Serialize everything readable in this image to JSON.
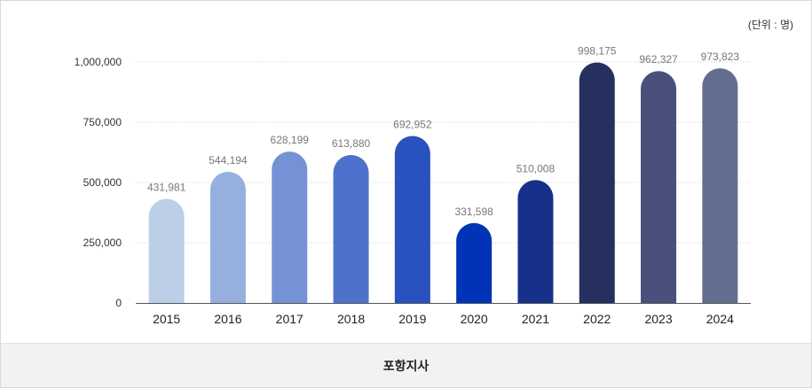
{
  "unit_label": "(단위 : 명)",
  "footer_label": "포항지사",
  "chart_data": {
    "type": "bar",
    "categories": [
      "2015",
      "2016",
      "2017",
      "2018",
      "2019",
      "2020",
      "2021",
      "2022",
      "2023",
      "2024"
    ],
    "values": [
      431981,
      544194,
      628199,
      613880,
      692952,
      331598,
      510008,
      998175,
      962327,
      973823
    ],
    "value_labels": [
      "431,981",
      "544,194",
      "628,199",
      "613,880",
      "692,952",
      "331,598",
      "510,008",
      "998,175",
      "962,327",
      "973,823"
    ],
    "yticks": [
      0,
      250000,
      500000,
      750000,
      1000000
    ],
    "ytick_labels": [
      "0",
      "250,000",
      "500,000",
      "750,000",
      "1,000,000"
    ],
    "ylim": [
      0,
      1000000
    ],
    "grid": true,
    "colors": [
      "#bccfe7",
      "#95b0df",
      "#7592d6",
      "#4e72cc",
      "#2a52be",
      "#0033b5",
      "#17318a",
      "#26305e",
      "#48507b",
      "#636d8f"
    ]
  }
}
